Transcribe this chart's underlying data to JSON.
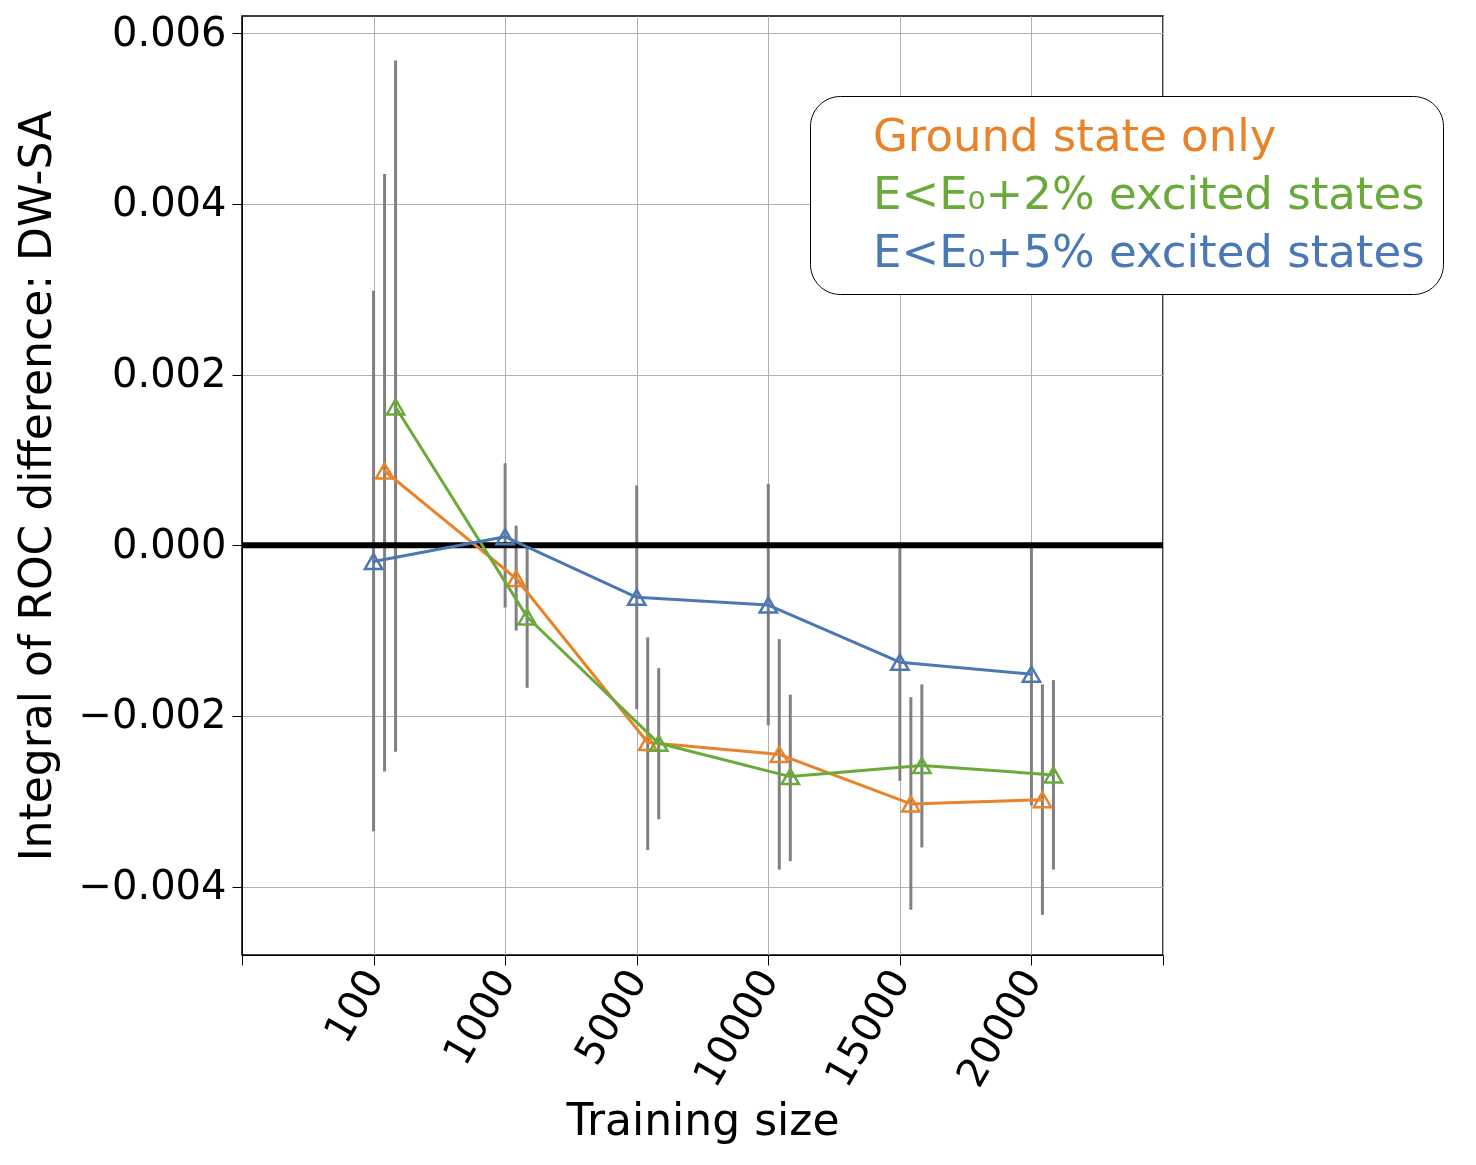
{
  "chart_data": {
    "type": "line",
    "xlabel": "Training size",
    "ylabel": "Integral of ROC difference: DW-SA",
    "categories": [
      "100",
      "1000",
      "5000",
      "10000",
      "15000",
      "20000"
    ],
    "ylim": [
      -0.0048,
      0.0062
    ],
    "yticks": [
      {
        "value": -0.004,
        "label": "−0.004"
      },
      {
        "value": -0.002,
        "label": "−0.002"
      },
      {
        "value": 0,
        "label": "0.000"
      },
      {
        "value": 0.002,
        "label": "0.002"
      },
      {
        "value": 0.004,
        "label": "0.004"
      },
      {
        "value": 0.006,
        "label": "0.006"
      }
    ],
    "grid": true,
    "legend": "top right",
    "marker": "triangle",
    "ref_lines": [
      {
        "axis": "y",
        "value": 0,
        "color": "#000000"
      }
    ],
    "series": [
      {
        "name": "Ground state only",
        "color": "#e8832a",
        "values": [
          0.00087,
          -0.00039,
          -0.00231,
          -0.00245,
          -0.00303,
          -0.00298
        ],
        "errors": [
          [
            -0.00265,
            0.00435
          ],
          [
            -0.001,
            0.00023
          ],
          [
            -0.00357,
            -0.00108
          ],
          [
            -0.0038,
            -0.0011
          ],
          [
            -0.00427,
            -0.00178
          ],
          [
            -0.00433,
            -0.00163
          ]
        ]
      },
      {
        "name": "E<E₀+2% excited states",
        "color": "#6aaa3a",
        "values": [
          0.00162,
          -0.00084,
          -0.00232,
          -0.00271,
          -0.00258,
          -0.00269
        ],
        "errors": [
          [
            -0.00242,
            0.00568
          ],
          [
            -0.00167,
            -2e-05
          ],
          [
            -0.00321,
            -0.00144
          ],
          [
            -0.0037,
            -0.00175
          ],
          [
            -0.00354,
            -0.00163
          ],
          [
            -0.0038,
            -0.00158
          ]
        ]
      },
      {
        "name": "E<E₀+5% excited states",
        "color": "#4a78b5",
        "values": [
          -0.00019,
          0.0001,
          -0.00061,
          -0.0007,
          -0.00137,
          -0.00151
        ],
        "errors": [
          [
            -0.00335,
            0.00298
          ],
          [
            -0.00073,
            0.00096
          ],
          [
            -0.00192,
            0.0007
          ],
          [
            -0.00211,
            0.00072
          ],
          [
            -0.00276,
            0
          ],
          [
            -0.00305,
            0
          ]
        ]
      }
    ]
  }
}
